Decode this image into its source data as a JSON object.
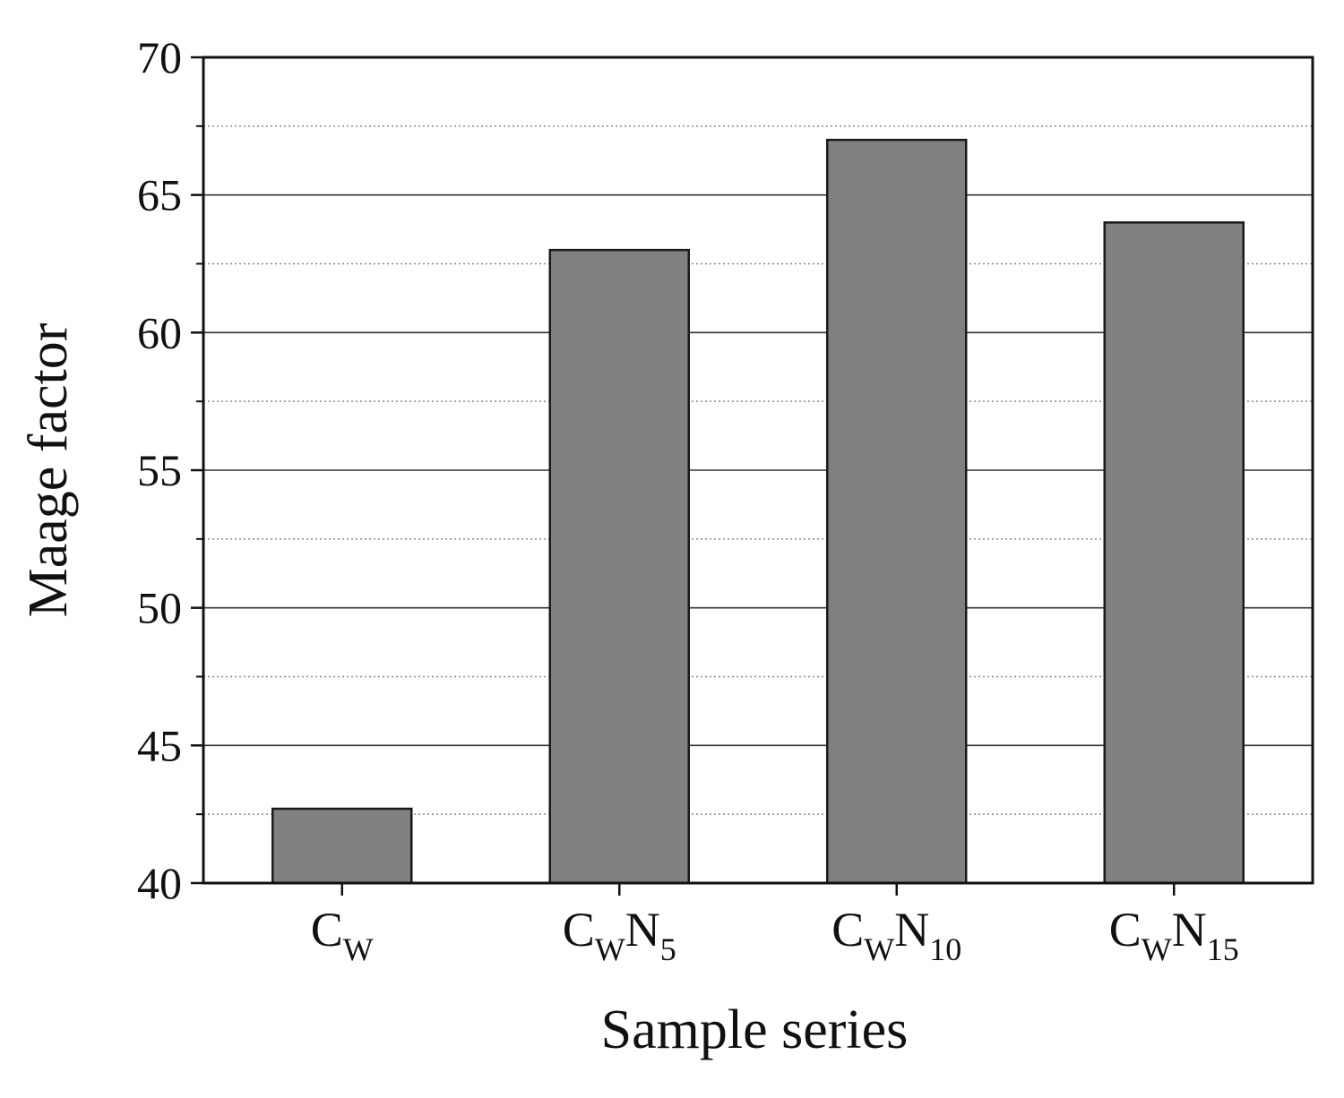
{
  "chart_data": {
    "type": "bar",
    "title": "",
    "xlabel": "Sample series",
    "ylabel": "Maage factor",
    "ylim": [
      40,
      70
    ],
    "yticks": [
      "40",
      "45",
      "50",
      "55",
      "60",
      "65",
      "70"
    ],
    "grid": {
      "major": true,
      "minor": true
    },
    "categories": [
      {
        "id": "CW",
        "parts": [
          {
            "text": "C",
            "sub": false
          },
          {
            "text": "W",
            "sub": true
          }
        ]
      },
      {
        "id": "CWN5",
        "parts": [
          {
            "text": "C",
            "sub": false
          },
          {
            "text": "W",
            "sub": true
          },
          {
            "text": "N",
            "sub": false
          },
          {
            "text": "5",
            "sub": true
          }
        ]
      },
      {
        "id": "CWN10",
        "parts": [
          {
            "text": "C",
            "sub": false
          },
          {
            "text": "W",
            "sub": true
          },
          {
            "text": "N",
            "sub": false
          },
          {
            "text": "10",
            "sub": true
          }
        ]
      },
      {
        "id": "CWN15",
        "parts": [
          {
            "text": "C",
            "sub": false
          },
          {
            "text": "W",
            "sub": true
          },
          {
            "text": "N",
            "sub": false
          },
          {
            "text": "15",
            "sub": true
          }
        ]
      }
    ],
    "values": [
      42.7,
      63,
      67,
      64
    ],
    "bar_color": "#808080",
    "bar_edge_color": "#1a1a1a"
  }
}
